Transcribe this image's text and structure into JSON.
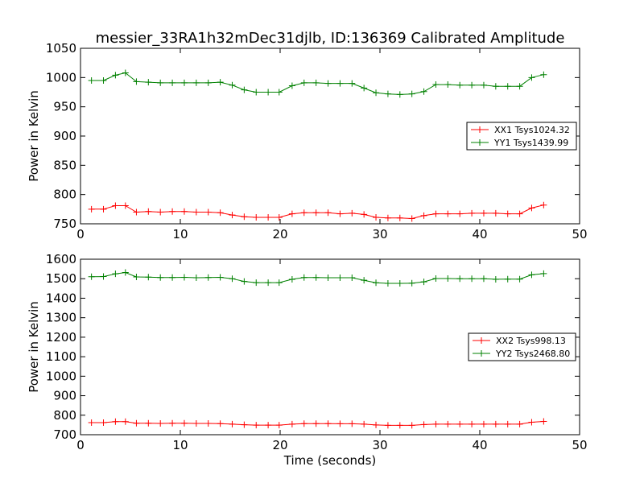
{
  "figure": {
    "title": "messier_33RA1h32mDec31djlb, ID:136369 Calibrated Amplitude",
    "xlabel": "Time (seconds)"
  },
  "chart_data": [
    {
      "type": "line",
      "title": "messier_33RA1h32mDec31djlb, ID:136369 Calibrated Amplitude",
      "xlabel": "",
      "ylabel": "Power in Kelvin",
      "xlim": [
        0,
        50
      ],
      "ylim": [
        750,
        1050
      ],
      "xticks": [
        0,
        10,
        20,
        30,
        40,
        50
      ],
      "yticks": [
        750,
        800,
        850,
        900,
        950,
        1000,
        1050
      ],
      "grid": false,
      "legend_position": "right",
      "x": [
        1.1,
        2.3,
        3.5,
        4.5,
        5.6,
        6.8,
        8.0,
        9.2,
        10.4,
        11.6,
        12.8,
        14.0,
        15.2,
        16.4,
        17.6,
        18.8,
        19.9,
        21.2,
        22.4,
        23.6,
        24.8,
        26.0,
        27.2,
        28.4,
        29.6,
        30.8,
        32.0,
        33.2,
        34.4,
        35.6,
        36.8,
        38.0,
        39.2,
        40.4,
        41.6,
        42.8,
        44.0,
        45.2,
        46.4
      ],
      "series": [
        {
          "name": "XX1 Tsys1024.32",
          "color": "#ff0000",
          "values": [
            775,
            775,
            781,
            781,
            770,
            771,
            770,
            771,
            771,
            770,
            770,
            769,
            765,
            762,
            761,
            761,
            761,
            767,
            769,
            769,
            769,
            767,
            768,
            766,
            761,
            760,
            760,
            759,
            764,
            767,
            767,
            767,
            768,
            768,
            768,
            767,
            767,
            777,
            782
          ]
        },
        {
          "name": "YY1 Tsys1439.99",
          "color": "#008000",
          "values": [
            995,
            995,
            1004,
            1008,
            993,
            992,
            991,
            991,
            991,
            991,
            991,
            992,
            987,
            979,
            975,
            975,
            975,
            986,
            991,
            991,
            990,
            990,
            990,
            982,
            974,
            972,
            971,
            972,
            976,
            988,
            988,
            987,
            987,
            987,
            985,
            985,
            985,
            1000,
            1005
          ]
        }
      ]
    },
    {
      "type": "line",
      "title": "",
      "xlabel": "Time (seconds)",
      "ylabel": "Power in Kelvin",
      "xlim": [
        0,
        50
      ],
      "ylim": [
        700,
        1600
      ],
      "xticks": [
        0,
        10,
        20,
        30,
        40,
        50
      ],
      "yticks": [
        700,
        800,
        900,
        1000,
        1100,
        1200,
        1300,
        1400,
        1500,
        1600
      ],
      "grid": false,
      "legend_position": "right",
      "x": [
        1.1,
        2.3,
        3.5,
        4.5,
        5.6,
        6.8,
        8.0,
        9.2,
        10.4,
        11.6,
        12.8,
        14.0,
        15.2,
        16.4,
        17.6,
        18.8,
        19.9,
        21.2,
        22.4,
        23.6,
        24.8,
        26.0,
        27.2,
        28.4,
        29.6,
        30.8,
        32.0,
        33.2,
        34.4,
        35.6,
        36.8,
        38.0,
        39.2,
        40.4,
        41.6,
        42.8,
        44.0,
        45.2,
        46.4
      ],
      "series": [
        {
          "name": "XX2 Tsys998.13",
          "color": "#ff0000",
          "values": [
            762,
            762,
            767,
            767,
            759,
            759,
            758,
            759,
            759,
            758,
            758,
            757,
            754,
            751,
            749,
            749,
            749,
            754,
            757,
            757,
            757,
            756,
            756,
            754,
            750,
            748,
            748,
            748,
            752,
            754,
            754,
            754,
            754,
            754,
            754,
            754,
            754,
            764,
            768
          ]
        },
        {
          "name": "YY2 Tsys2468.80",
          "color": "#008000",
          "values": [
            1510,
            1511,
            1525,
            1532,
            1509,
            1508,
            1506,
            1506,
            1507,
            1505,
            1506,
            1507,
            1500,
            1486,
            1480,
            1480,
            1480,
            1497,
            1506,
            1506,
            1505,
            1505,
            1505,
            1492,
            1479,
            1476,
            1476,
            1477,
            1484,
            1501,
            1501,
            1500,
            1500,
            1500,
            1497,
            1498,
            1498,
            1520,
            1526
          ]
        }
      ]
    }
  ]
}
